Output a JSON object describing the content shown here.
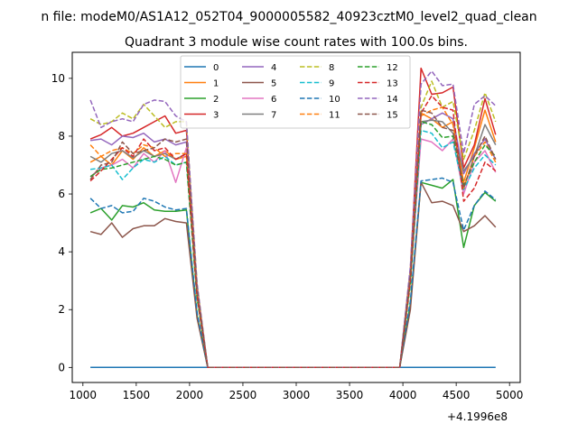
{
  "chart_data": {
    "type": "line",
    "suptitle": "n file: modeM0/AS1A12_052T04_9000005582_40923cztM0_level2_quad_clean",
    "title": "Quadrant 3 module wise count rates with 100.0s bins.",
    "offset_label": "+4.1996e8",
    "xlabel": "",
    "ylabel": "",
    "xlim": [
      900,
      5100
    ],
    "ylim": [
      -0.52,
      10.9
    ],
    "xticks": [
      1000,
      1500,
      2000,
      2500,
      3000,
      3500,
      4000,
      4500,
      5000
    ],
    "yticks": [
      0,
      2,
      4,
      6,
      8,
      10
    ],
    "legend_position": "top-center",
    "legend_columns": 4,
    "x": [
      1070,
      1170,
      1270,
      1370,
      1470,
      1570,
      1670,
      1770,
      1870,
      1970,
      2070,
      2170,
      2270,
      2370,
      2470,
      2570,
      2670,
      2770,
      2870,
      2970,
      3070,
      3170,
      3270,
      3370,
      3470,
      3570,
      3670,
      3770,
      3870,
      3970,
      4070,
      4170,
      4270,
      4370,
      4470,
      4570,
      4670,
      4770,
      4870
    ],
    "series": [
      {
        "name": "0",
        "color": "#1f77b4",
        "dash": "solid",
        "values": [
          0,
          0,
          0,
          0,
          0,
          0,
          0,
          0,
          0,
          0,
          0,
          0,
          0,
          0,
          0,
          0,
          0,
          0,
          0,
          0,
          0,
          0,
          0,
          0,
          0,
          0,
          0,
          0,
          0,
          0,
          0,
          0,
          0,
          0,
          0,
          0,
          0,
          0,
          0
        ]
      },
      {
        "name": "1",
        "color": "#ff7f0e",
        "dash": "solid",
        "values": [
          7.1,
          7.3,
          7.0,
          7.5,
          7.2,
          7.6,
          7.3,
          7.5,
          7.2,
          7.3,
          2.5,
          0,
          0,
          0,
          0,
          0,
          0,
          0,
          0,
          0,
          0,
          0,
          0,
          0,
          0,
          0,
          0,
          0,
          0,
          0,
          3.0,
          8.8,
          8.6,
          8.3,
          8.5,
          6.4,
          7.6,
          8.9,
          7.8
        ]
      },
      {
        "name": "2",
        "color": "#2ca02c",
        "dash": "solid",
        "values": [
          5.35,
          5.5,
          5.1,
          5.6,
          5.55,
          5.7,
          5.45,
          5.4,
          5.4,
          5.45,
          1.8,
          0,
          0,
          0,
          0,
          0,
          0,
          0,
          0,
          0,
          0,
          0,
          0,
          0,
          0,
          0,
          0,
          0,
          0,
          0,
          2.2,
          6.4,
          6.3,
          6.2,
          6.5,
          4.15,
          5.6,
          6.05,
          5.75
        ]
      },
      {
        "name": "3",
        "color": "#d62728",
        "dash": "solid",
        "values": [
          7.9,
          8.05,
          8.3,
          8.0,
          8.1,
          8.3,
          8.5,
          8.7,
          8.1,
          8.2,
          2.8,
          0,
          0,
          0,
          0,
          0,
          0,
          0,
          0,
          0,
          0,
          0,
          0,
          0,
          0,
          0,
          0,
          0,
          0,
          0,
          3.4,
          10.35,
          9.45,
          9.5,
          9.7,
          6.9,
          7.7,
          9.3,
          8.05
        ]
      },
      {
        "name": "4",
        "color": "#9467bd",
        "dash": "solid",
        "values": [
          7.85,
          7.9,
          7.7,
          8.0,
          7.95,
          8.1,
          7.8,
          7.9,
          7.7,
          7.8,
          2.7,
          0,
          0,
          0,
          0,
          0,
          0,
          0,
          0,
          0,
          0,
          0,
          0,
          0,
          0,
          0,
          0,
          0,
          0,
          0,
          3.3,
          8.4,
          8.6,
          8.8,
          8.6,
          6.7,
          7.4,
          7.9,
          7.2
        ]
      },
      {
        "name": "5",
        "color": "#8c564b",
        "dash": "solid",
        "values": [
          4.7,
          4.6,
          5.0,
          4.5,
          4.8,
          4.9,
          4.9,
          5.15,
          5.05,
          5.0,
          1.7,
          0,
          0,
          0,
          0,
          0,
          0,
          0,
          0,
          0,
          0,
          0,
          0,
          0,
          0,
          0,
          0,
          0,
          0,
          0,
          2.0,
          6.4,
          5.7,
          5.75,
          5.6,
          4.7,
          4.9,
          5.25,
          4.85
        ]
      },
      {
        "name": "6",
        "color": "#e377c2",
        "dash": "solid",
        "values": [
          6.6,
          6.9,
          7.0,
          7.2,
          6.9,
          7.4,
          7.1,
          7.5,
          6.4,
          7.6,
          2.5,
          0,
          0,
          0,
          0,
          0,
          0,
          0,
          0,
          0,
          0,
          0,
          0,
          0,
          0,
          0,
          0,
          0,
          0,
          0,
          3.0,
          7.9,
          7.8,
          7.5,
          7.9,
          6.0,
          7.1,
          7.5,
          6.75
        ]
      },
      {
        "name": "7",
        "color": "#7f7f7f",
        "dash": "solid",
        "values": [
          7.3,
          7.1,
          7.4,
          7.5,
          7.25,
          7.5,
          7.3,
          7.4,
          7.2,
          7.4,
          2.5,
          0,
          0,
          0,
          0,
          0,
          0,
          0,
          0,
          0,
          0,
          0,
          0,
          0,
          0,
          0,
          0,
          0,
          0,
          0,
          3.0,
          8.5,
          8.55,
          8.5,
          8.1,
          6.8,
          7.3,
          8.4,
          7.7
        ]
      },
      {
        "name": "8",
        "color": "#bcbd22",
        "dash": "dashed",
        "values": [
          8.6,
          8.4,
          8.5,
          8.8,
          8.6,
          9.1,
          8.7,
          8.3,
          8.5,
          8.5,
          2.9,
          0,
          0,
          0,
          0,
          0,
          0,
          0,
          0,
          0,
          0,
          0,
          0,
          0,
          0,
          0,
          0,
          0,
          0,
          0,
          3.4,
          9.0,
          9.9,
          9.0,
          9.2,
          7.2,
          8.2,
          9.5,
          8.5
        ]
      },
      {
        "name": "9",
        "color": "#17becf",
        "dash": "dashed",
        "values": [
          6.85,
          6.9,
          7.0,
          6.5,
          6.9,
          7.2,
          7.1,
          7.3,
          7.0,
          7.1,
          2.4,
          0,
          0,
          0,
          0,
          0,
          0,
          0,
          0,
          0,
          0,
          0,
          0,
          0,
          0,
          0,
          0,
          0,
          0,
          0,
          2.9,
          8.2,
          8.1,
          7.6,
          7.8,
          6.15,
          6.9,
          7.35,
          7.0
        ]
      },
      {
        "name": "10",
        "color": "#1f77b4",
        "dash": "dashed",
        "values": [
          5.85,
          5.5,
          5.6,
          5.35,
          5.4,
          5.85,
          5.75,
          5.55,
          5.45,
          5.5,
          1.9,
          0,
          0,
          0,
          0,
          0,
          0,
          0,
          0,
          0,
          0,
          0,
          0,
          0,
          0,
          0,
          0,
          0,
          0,
          0,
          2.3,
          6.45,
          6.5,
          6.55,
          6.4,
          4.75,
          5.6,
          6.1,
          5.8
        ]
      },
      {
        "name": "11",
        "color": "#ff7f0e",
        "dash": "dashed",
        "values": [
          7.7,
          7.3,
          7.5,
          7.6,
          7.4,
          7.7,
          7.6,
          7.3,
          7.4,
          7.4,
          2.5,
          0,
          0,
          0,
          0,
          0,
          0,
          0,
          0,
          0,
          0,
          0,
          0,
          0,
          0,
          0,
          0,
          0,
          0,
          0,
          3.0,
          8.7,
          8.9,
          9.0,
          8.4,
          6.2,
          7.3,
          7.8,
          7.1
        ]
      },
      {
        "name": "12",
        "color": "#2ca02c",
        "dash": "dashed",
        "values": [
          6.6,
          6.85,
          6.9,
          7.0,
          7.1,
          7.2,
          7.3,
          7.2,
          7.0,
          7.1,
          2.4,
          0,
          0,
          0,
          0,
          0,
          0,
          0,
          0,
          0,
          0,
          0,
          0,
          0,
          0,
          0,
          0,
          0,
          0,
          0,
          2.9,
          8.5,
          8.4,
          7.95,
          8.0,
          6.3,
          7.1,
          7.7,
          7.3
        ]
      },
      {
        "name": "13",
        "color": "#d62728",
        "dash": "dashed",
        "values": [
          6.45,
          6.8,
          7.2,
          7.6,
          7.3,
          7.9,
          7.5,
          7.6,
          7.2,
          7.4,
          2.5,
          0,
          0,
          0,
          0,
          0,
          0,
          0,
          0,
          0,
          0,
          0,
          0,
          0,
          0,
          0,
          0,
          0,
          0,
          0,
          3.0,
          8.8,
          9.4,
          9.0,
          8.9,
          5.75,
          6.2,
          7.1,
          6.8
        ]
      },
      {
        "name": "14",
        "color": "#9467bd",
        "dash": "dashed",
        "values": [
          9.25,
          8.3,
          8.5,
          8.6,
          8.5,
          9.1,
          9.25,
          9.2,
          8.7,
          8.5,
          2.9,
          0,
          0,
          0,
          0,
          0,
          0,
          0,
          0,
          0,
          0,
          0,
          0,
          0,
          0,
          0,
          0,
          0,
          0,
          0,
          3.5,
          9.8,
          10.25,
          9.75,
          9.8,
          7.4,
          9.1,
          9.4,
          9.05
        ]
      },
      {
        "name": "15",
        "color": "#8c564b",
        "dash": "dashed",
        "values": [
          6.5,
          7.0,
          7.1,
          7.8,
          7.4,
          7.5,
          7.6,
          7.9,
          7.8,
          7.9,
          2.7,
          0,
          0,
          0,
          0,
          0,
          0,
          0,
          0,
          0,
          0,
          0,
          0,
          0,
          0,
          0,
          0,
          0,
          0,
          0,
          3.2,
          8.9,
          8.8,
          8.3,
          8.2,
          6.2,
          7.3,
          8.0,
          7.2
        ]
      }
    ]
  }
}
